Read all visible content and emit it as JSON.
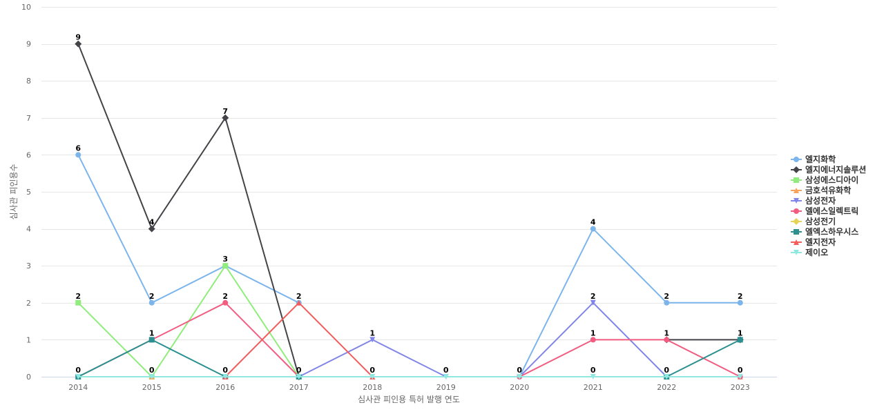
{
  "chart_data": {
    "type": "line",
    "title": "",
    "xlabel": "심사관 피인용 특허 발행 연도",
    "ylabel": "심사관 피인용수",
    "x": [
      "2014",
      "2015",
      "2016",
      "2017",
      "2018",
      "2019",
      "2020",
      "2021",
      "2022",
      "2023"
    ],
    "yticks": [
      "0",
      "1",
      "2",
      "3",
      "4",
      "5",
      "6",
      "7",
      "8",
      "9",
      "10"
    ],
    "ylim": [
      0,
      10
    ],
    "grid": true,
    "legend_position": "right",
    "series": [
      {
        "name": "엘지화학",
        "color": "#7cb5ec",
        "marker": "circle",
        "values": [
          6,
          2,
          3,
          2,
          null,
          null,
          0,
          4,
          2,
          2
        ]
      },
      {
        "name": "엘지에너지솔루션",
        "color": "#434348",
        "marker": "diamond",
        "values": [
          9,
          4,
          7,
          0,
          null,
          null,
          null,
          null,
          1,
          1
        ]
      },
      {
        "name": "삼성에스디아이",
        "color": "#90ed7d",
        "marker": "square",
        "values": [
          2,
          0,
          3,
          0,
          null,
          null,
          null,
          null,
          null,
          null
        ]
      },
      {
        "name": "금호석유화학",
        "color": "#f7a35c",
        "marker": "triangle",
        "values": [
          0,
          0,
          0,
          null,
          null,
          null,
          null,
          null,
          0,
          0
        ]
      },
      {
        "name": "삼성전자",
        "color": "#8085e9",
        "marker": "triangle-down",
        "values": [
          null,
          null,
          null,
          0,
          1,
          0,
          0,
          2,
          0,
          null
        ]
      },
      {
        "name": "엘에스일렉트릭",
        "color": "#f15c80",
        "marker": "circle",
        "values": [
          0,
          1,
          2,
          0,
          null,
          null,
          0,
          1,
          1,
          0
        ]
      },
      {
        "name": "삼성전기",
        "color": "#e4d354",
        "marker": "diamond",
        "values": [
          null,
          null,
          null,
          null,
          null,
          null,
          null,
          null,
          null,
          null
        ]
      },
      {
        "name": "엘엑스하우시스",
        "color": "#2b908f",
        "marker": "square",
        "values": [
          0,
          1,
          0,
          0,
          null,
          null,
          null,
          null,
          0,
          1
        ]
      },
      {
        "name": "엘지전자",
        "color": "#f45b5b",
        "marker": "triangle",
        "values": [
          null,
          null,
          0,
          2,
          0,
          null,
          null,
          null,
          null,
          null
        ]
      },
      {
        "name": "제이오",
        "color": "#91e8e1",
        "marker": "triangle-down",
        "values": [
          0,
          0,
          0,
          0,
          0,
          0,
          0,
          0,
          0,
          0
        ]
      }
    ],
    "data_labels": [
      {
        "x": "2014",
        "y": 9,
        "text": "9"
      },
      {
        "x": "2014",
        "y": 6,
        "text": "6"
      },
      {
        "x": "2014",
        "y": 2,
        "text": "2"
      },
      {
        "x": "2014",
        "y": 0,
        "text": "0"
      },
      {
        "x": "2015",
        "y": 4,
        "text": "4"
      },
      {
        "x": "2015",
        "y": 2,
        "text": "2"
      },
      {
        "x": "2015",
        "y": 1,
        "text": "1"
      },
      {
        "x": "2015",
        "y": 0,
        "text": "0"
      },
      {
        "x": "2016",
        "y": 7,
        "text": "7"
      },
      {
        "x": "2016",
        "y": 3,
        "text": "3"
      },
      {
        "x": "2016",
        "y": 2,
        "text": "2"
      },
      {
        "x": "2016",
        "y": 0,
        "text": "0"
      },
      {
        "x": "2017",
        "y": 2,
        "text": "2"
      },
      {
        "x": "2017",
        "y": 0,
        "text": "0"
      },
      {
        "x": "2018",
        "y": 1,
        "text": "1"
      },
      {
        "x": "2018",
        "y": 0,
        "text": "0"
      },
      {
        "x": "2019",
        "y": 0,
        "text": "0"
      },
      {
        "x": "2020",
        "y": 0,
        "text": "0"
      },
      {
        "x": "2021",
        "y": 4,
        "text": "4"
      },
      {
        "x": "2021",
        "y": 2,
        "text": "2"
      },
      {
        "x": "2021",
        "y": 1,
        "text": "1"
      },
      {
        "x": "2021",
        "y": 0,
        "text": "0"
      },
      {
        "x": "2022",
        "y": 2,
        "text": "2"
      },
      {
        "x": "2022",
        "y": 1,
        "text": "1"
      },
      {
        "x": "2022",
        "y": 0,
        "text": "0"
      },
      {
        "x": "2023",
        "y": 2,
        "text": "2"
      },
      {
        "x": "2023",
        "y": 1,
        "text": "1"
      },
      {
        "x": "2023",
        "y": 0,
        "text": "0"
      }
    ]
  }
}
